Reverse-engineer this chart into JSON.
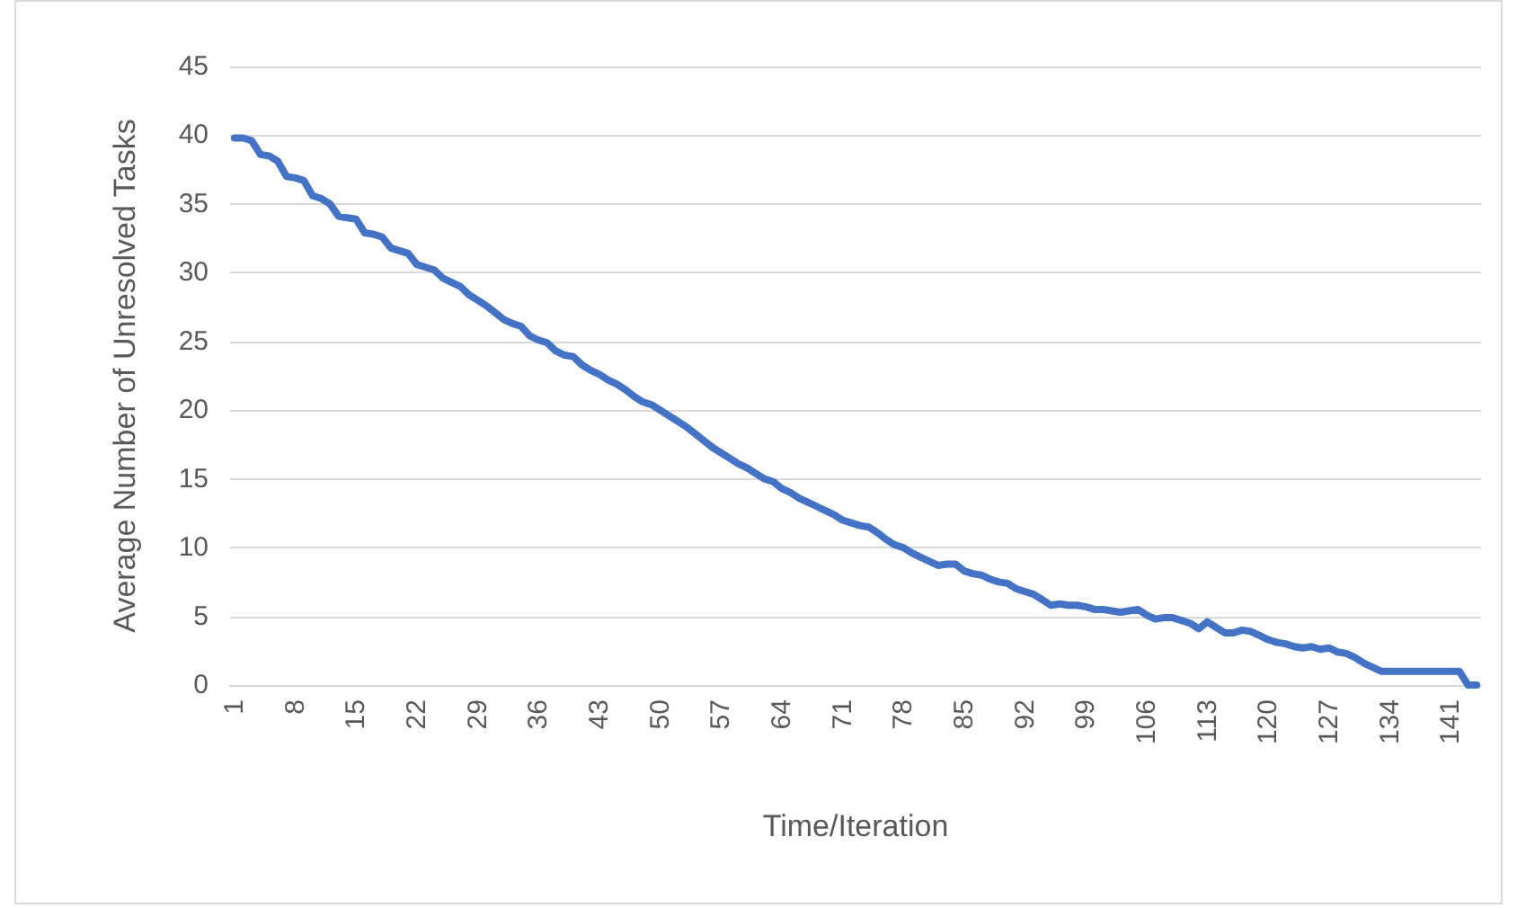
{
  "chart_data": {
    "type": "line",
    "xlabel": "Time/Iteration",
    "ylabel": "Average Number of Unresolved Tasks",
    "categories": [
      "1",
      null,
      null,
      null,
      null,
      null,
      null,
      "8",
      null,
      null,
      null,
      null,
      null,
      null,
      "15",
      null,
      null,
      null,
      null,
      null,
      null,
      "22",
      null,
      null,
      null,
      null,
      null,
      null,
      "29",
      null,
      null,
      null,
      null,
      null,
      null,
      "36",
      null,
      null,
      null,
      null,
      null,
      null,
      "43",
      null,
      null,
      null,
      null,
      null,
      null,
      "50",
      null,
      null,
      null,
      null,
      null,
      null,
      "57",
      null,
      null,
      null,
      null,
      null,
      null,
      "64",
      null,
      null,
      null,
      null,
      null,
      null,
      "71",
      null,
      null,
      null,
      null,
      null,
      null,
      "78",
      null,
      null,
      null,
      null,
      null,
      null,
      "85",
      null,
      null,
      null,
      null,
      null,
      null,
      "92",
      null,
      null,
      null,
      null,
      null,
      null,
      "99",
      null,
      null,
      null,
      null,
      null,
      null,
      "106",
      null,
      null,
      null,
      null,
      null,
      null,
      "113",
      null,
      null,
      null,
      null,
      null,
      null,
      "120",
      null,
      null,
      null,
      null,
      null,
      null,
      "127",
      null,
      null,
      null,
      null,
      null,
      null,
      "134",
      null,
      null,
      null,
      null,
      null,
      null,
      "141",
      null,
      null,
      null
    ],
    "series": [
      {
        "color": "#4472c4",
        "values": [
          39.8,
          39.8,
          39.6,
          38.6,
          38.5,
          38.1,
          37.0,
          36.9,
          36.7,
          35.6,
          35.4,
          35.0,
          34.1,
          34.0,
          33.9,
          32.9,
          32.8,
          32.6,
          31.8,
          31.6,
          31.4,
          30.6,
          30.4,
          30.2,
          29.6,
          29.3,
          29.0,
          28.4,
          28.0,
          27.6,
          27.1,
          26.6,
          26.3,
          26.1,
          25.4,
          25.1,
          24.9,
          24.3,
          24.0,
          23.9,
          23.3,
          22.9,
          22.6,
          22.2,
          21.9,
          21.5,
          21.0,
          20.6,
          20.4,
          20.0,
          19.6,
          19.2,
          18.8,
          18.3,
          17.8,
          17.3,
          16.9,
          16.5,
          16.1,
          15.8,
          15.4,
          15.0,
          14.8,
          14.3,
          14.0,
          13.6,
          13.3,
          13.0,
          12.7,
          12.4,
          12.0,
          11.8,
          11.6,
          11.5,
          11.1,
          10.6,
          10.2,
          10.0,
          9.6,
          9.3,
          9.0,
          8.7,
          8.8,
          8.8,
          8.3,
          8.1,
          8.0,
          7.7,
          7.5,
          7.4,
          7.0,
          6.8,
          6.6,
          6.2,
          5.8,
          5.9,
          5.8,
          5.8,
          5.7,
          5.5,
          5.5,
          5.4,
          5.3,
          5.4,
          5.5,
          5.1,
          4.8,
          4.9,
          4.9,
          4.7,
          4.5,
          4.1,
          4.6,
          4.2,
          3.8,
          3.8,
          4.0,
          3.9,
          3.6,
          3.3,
          3.1,
          3.0,
          2.8,
          2.7,
          2.8,
          2.6,
          2.7,
          2.4,
          2.3,
          2.0,
          1.6,
          1.3,
          1.0,
          1.0,
          1.0,
          1.0,
          1.0,
          1.0,
          1.0,
          1.0,
          1.0,
          1.0,
          0.0,
          0.0
        ]
      }
    ],
    "ylim": [
      0,
      45
    ],
    "yticks": [
      0,
      5,
      10,
      15,
      20,
      25,
      30,
      35,
      40,
      45
    ],
    "grid": "y",
    "marker": "none",
    "line_style": "solid"
  }
}
